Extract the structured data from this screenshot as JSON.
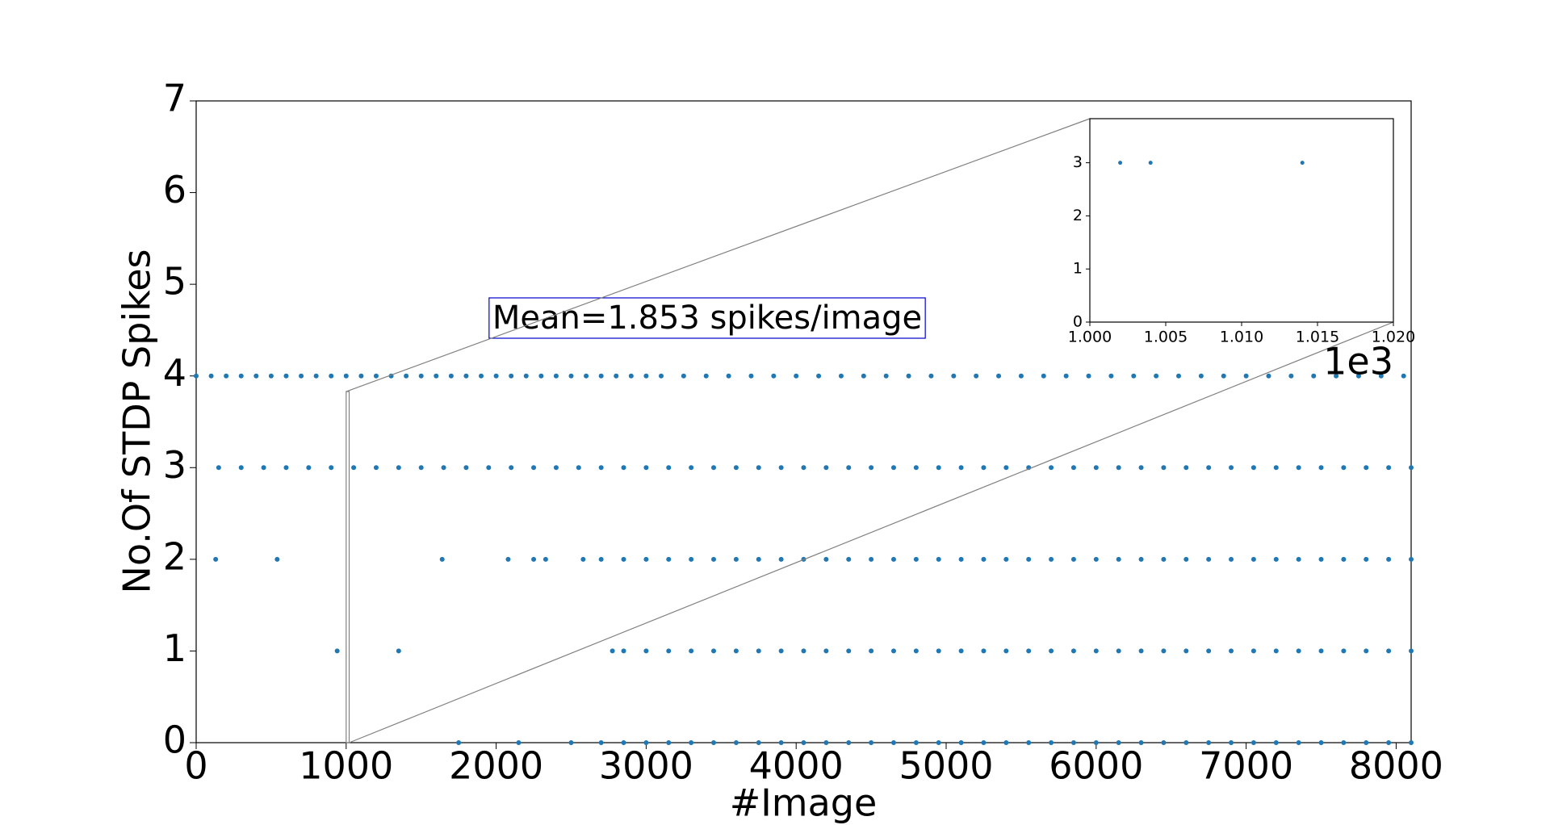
{
  "chart_data": {
    "type": "scatter",
    "x_label": "#Image",
    "y_label": "No.Of STDP Spikes",
    "annotation": "Mean=1.853 spikes/image",
    "xlim": [
      0,
      8100
    ],
    "ylim": [
      0,
      7
    ],
    "xticks": [
      0,
      1000,
      2000,
      3000,
      4000,
      5000,
      6000,
      7000,
      8000
    ],
    "yticks": [
      0,
      1,
      2,
      3,
      4,
      5,
      6,
      7
    ],
    "series": [
      {
        "color": "#1f77b4",
        "x": [
          0,
          100,
          200,
          300,
          400,
          500,
          600,
          700,
          800,
          900,
          1000,
          1100,
          1200,
          1300,
          1400,
          1500,
          1600,
          1700,
          1800,
          1900,
          2000,
          2100,
          2200,
          2300,
          2400,
          2500,
          2600,
          2700,
          2800,
          2900,
          3000,
          3100,
          3250,
          3400,
          3550,
          3700,
          3850,
          4000,
          4150,
          4300,
          4450,
          4600,
          4750,
          4900,
          5050,
          5200,
          5350,
          5500,
          5650,
          5800,
          5950,
          6100,
          6250,
          6400,
          6550,
          6700,
          6850,
          7000,
          7150,
          7300,
          7450,
          7600,
          7750,
          7900,
          8050
        ],
        "values": [
          4,
          4,
          4,
          4,
          4,
          4,
          4,
          4,
          4,
          4,
          4,
          4,
          4,
          4,
          4,
          4,
          4,
          4,
          4,
          4,
          4,
          4,
          4,
          4,
          4,
          4,
          4,
          4,
          4,
          4,
          4,
          4,
          4,
          4,
          4,
          4,
          4,
          4,
          4,
          4,
          4,
          4,
          4,
          4,
          4,
          4,
          4,
          4,
          4,
          4,
          4,
          4,
          4,
          4,
          4,
          4,
          4,
          4,
          4,
          4,
          4,
          4,
          4,
          4,
          4
        ]
      },
      {
        "color": "#1f77b4",
        "x": [
          150,
          300,
          450,
          600,
          750,
          900,
          1050,
          1200,
          1350,
          1500,
          1650,
          1800,
          1950,
          2100,
          2250,
          2400,
          2550,
          2700,
          2850,
          3000,
          3150,
          3300,
          3450,
          3600,
          3750,
          3900,
          4050,
          4200,
          4350,
          4500,
          4650,
          4800,
          4950,
          5100,
          5250,
          5400,
          5550,
          5700,
          5850,
          6000,
          6150,
          6300,
          6450,
          6600,
          6750,
          6900,
          7050,
          7200,
          7350,
          7500,
          7650,
          7800,
          7950,
          8100
        ],
        "values": [
          3,
          3,
          3,
          3,
          3,
          3,
          3,
          3,
          3,
          3,
          3,
          3,
          3,
          3,
          3,
          3,
          3,
          3,
          3,
          3,
          3,
          3,
          3,
          3,
          3,
          3,
          3,
          3,
          3,
          3,
          3,
          3,
          3,
          3,
          3,
          3,
          3,
          3,
          3,
          3,
          3,
          3,
          3,
          3,
          3,
          3,
          3,
          3,
          3,
          3,
          3,
          3,
          3,
          3
        ]
      },
      {
        "color": "#1f77b4",
        "x": [
          130,
          540,
          1640,
          2080,
          2250,
          2330,
          2580,
          2700,
          2850,
          3000,
          3150,
          3300,
          3450,
          3600,
          3750,
          3900,
          4050,
          4200,
          4350,
          4500,
          4650,
          4800,
          4950,
          5100,
          5250,
          5400,
          5550,
          5700,
          5850,
          6000,
          6150,
          6300,
          6450,
          6600,
          6750,
          6900,
          7050,
          7200,
          7350,
          7500,
          7650,
          7800,
          7950,
          8100
        ],
        "values": [
          2,
          2,
          2,
          2,
          2,
          2,
          2,
          2,
          2,
          2,
          2,
          2,
          2,
          2,
          2,
          2,
          2,
          2,
          2,
          2,
          2,
          2,
          2,
          2,
          2,
          2,
          2,
          2,
          2,
          2,
          2,
          2,
          2,
          2,
          2,
          2,
          2,
          2,
          2,
          2,
          2,
          2,
          2,
          2
        ]
      },
      {
        "color": "#1f77b4",
        "x": [
          940,
          1350,
          2775,
          2850,
          3000,
          3150,
          3300,
          3450,
          3600,
          3750,
          3900,
          4050,
          4200,
          4350,
          4500,
          4650,
          4800,
          4950,
          5100,
          5250,
          5400,
          5550,
          5700,
          5850,
          6000,
          6150,
          6300,
          6450,
          6600,
          6750,
          6900,
          7050,
          7200,
          7350,
          7500,
          7650,
          7800,
          7950,
          8100
        ],
        "values": [
          1,
          1,
          1,
          1,
          1,
          1,
          1,
          1,
          1,
          1,
          1,
          1,
          1,
          1,
          1,
          1,
          1,
          1,
          1,
          1,
          1,
          1,
          1,
          1,
          1,
          1,
          1,
          1,
          1,
          1,
          1,
          1,
          1,
          1,
          1,
          1,
          1,
          1,
          1
        ]
      },
      {
        "color": "#1f77b4",
        "x": [
          1750,
          2150,
          2500,
          2700,
          2850,
          3000,
          3150,
          3300,
          3450,
          3600,
          3750,
          3900,
          4050,
          4200,
          4350,
          4500,
          4650,
          4800,
          4950,
          5100,
          5250,
          5400,
          5550,
          5700,
          5850,
          6000,
          6150,
          6300,
          6450,
          6600,
          6750,
          6900,
          7050,
          7200,
          7350,
          7500,
          7650,
          7800,
          7950,
          8100
        ],
        "values": [
          0,
          0,
          0,
          0,
          0,
          0,
          0,
          0,
          0,
          0,
          0,
          0,
          0,
          0,
          0,
          0,
          0,
          0,
          0,
          0,
          0,
          0,
          0,
          0,
          0,
          0,
          0,
          0,
          0,
          0,
          0,
          0,
          0,
          0,
          0,
          0,
          0,
          0,
          0,
          0
        ]
      }
    ],
    "inset": {
      "xlim": [
        1000,
        1020
      ],
      "ylim": [
        0,
        3.83
      ],
      "xticks": [
        {
          "value": 1000,
          "label": "1.000"
        },
        {
          "value": 1005,
          "label": "1.005"
        },
        {
          "value": 1010,
          "label": "1.010"
        },
        {
          "value": 1015,
          "label": "1.015"
        },
        {
          "value": 1020,
          "label": "1.020"
        }
      ],
      "yticks": [
        0,
        1,
        2,
        3
      ],
      "offset_label": "1e3",
      "color": "#1f77b4",
      "x": [
        1002,
        1004,
        1014
      ],
      "values": [
        3,
        3,
        3
      ]
    }
  }
}
